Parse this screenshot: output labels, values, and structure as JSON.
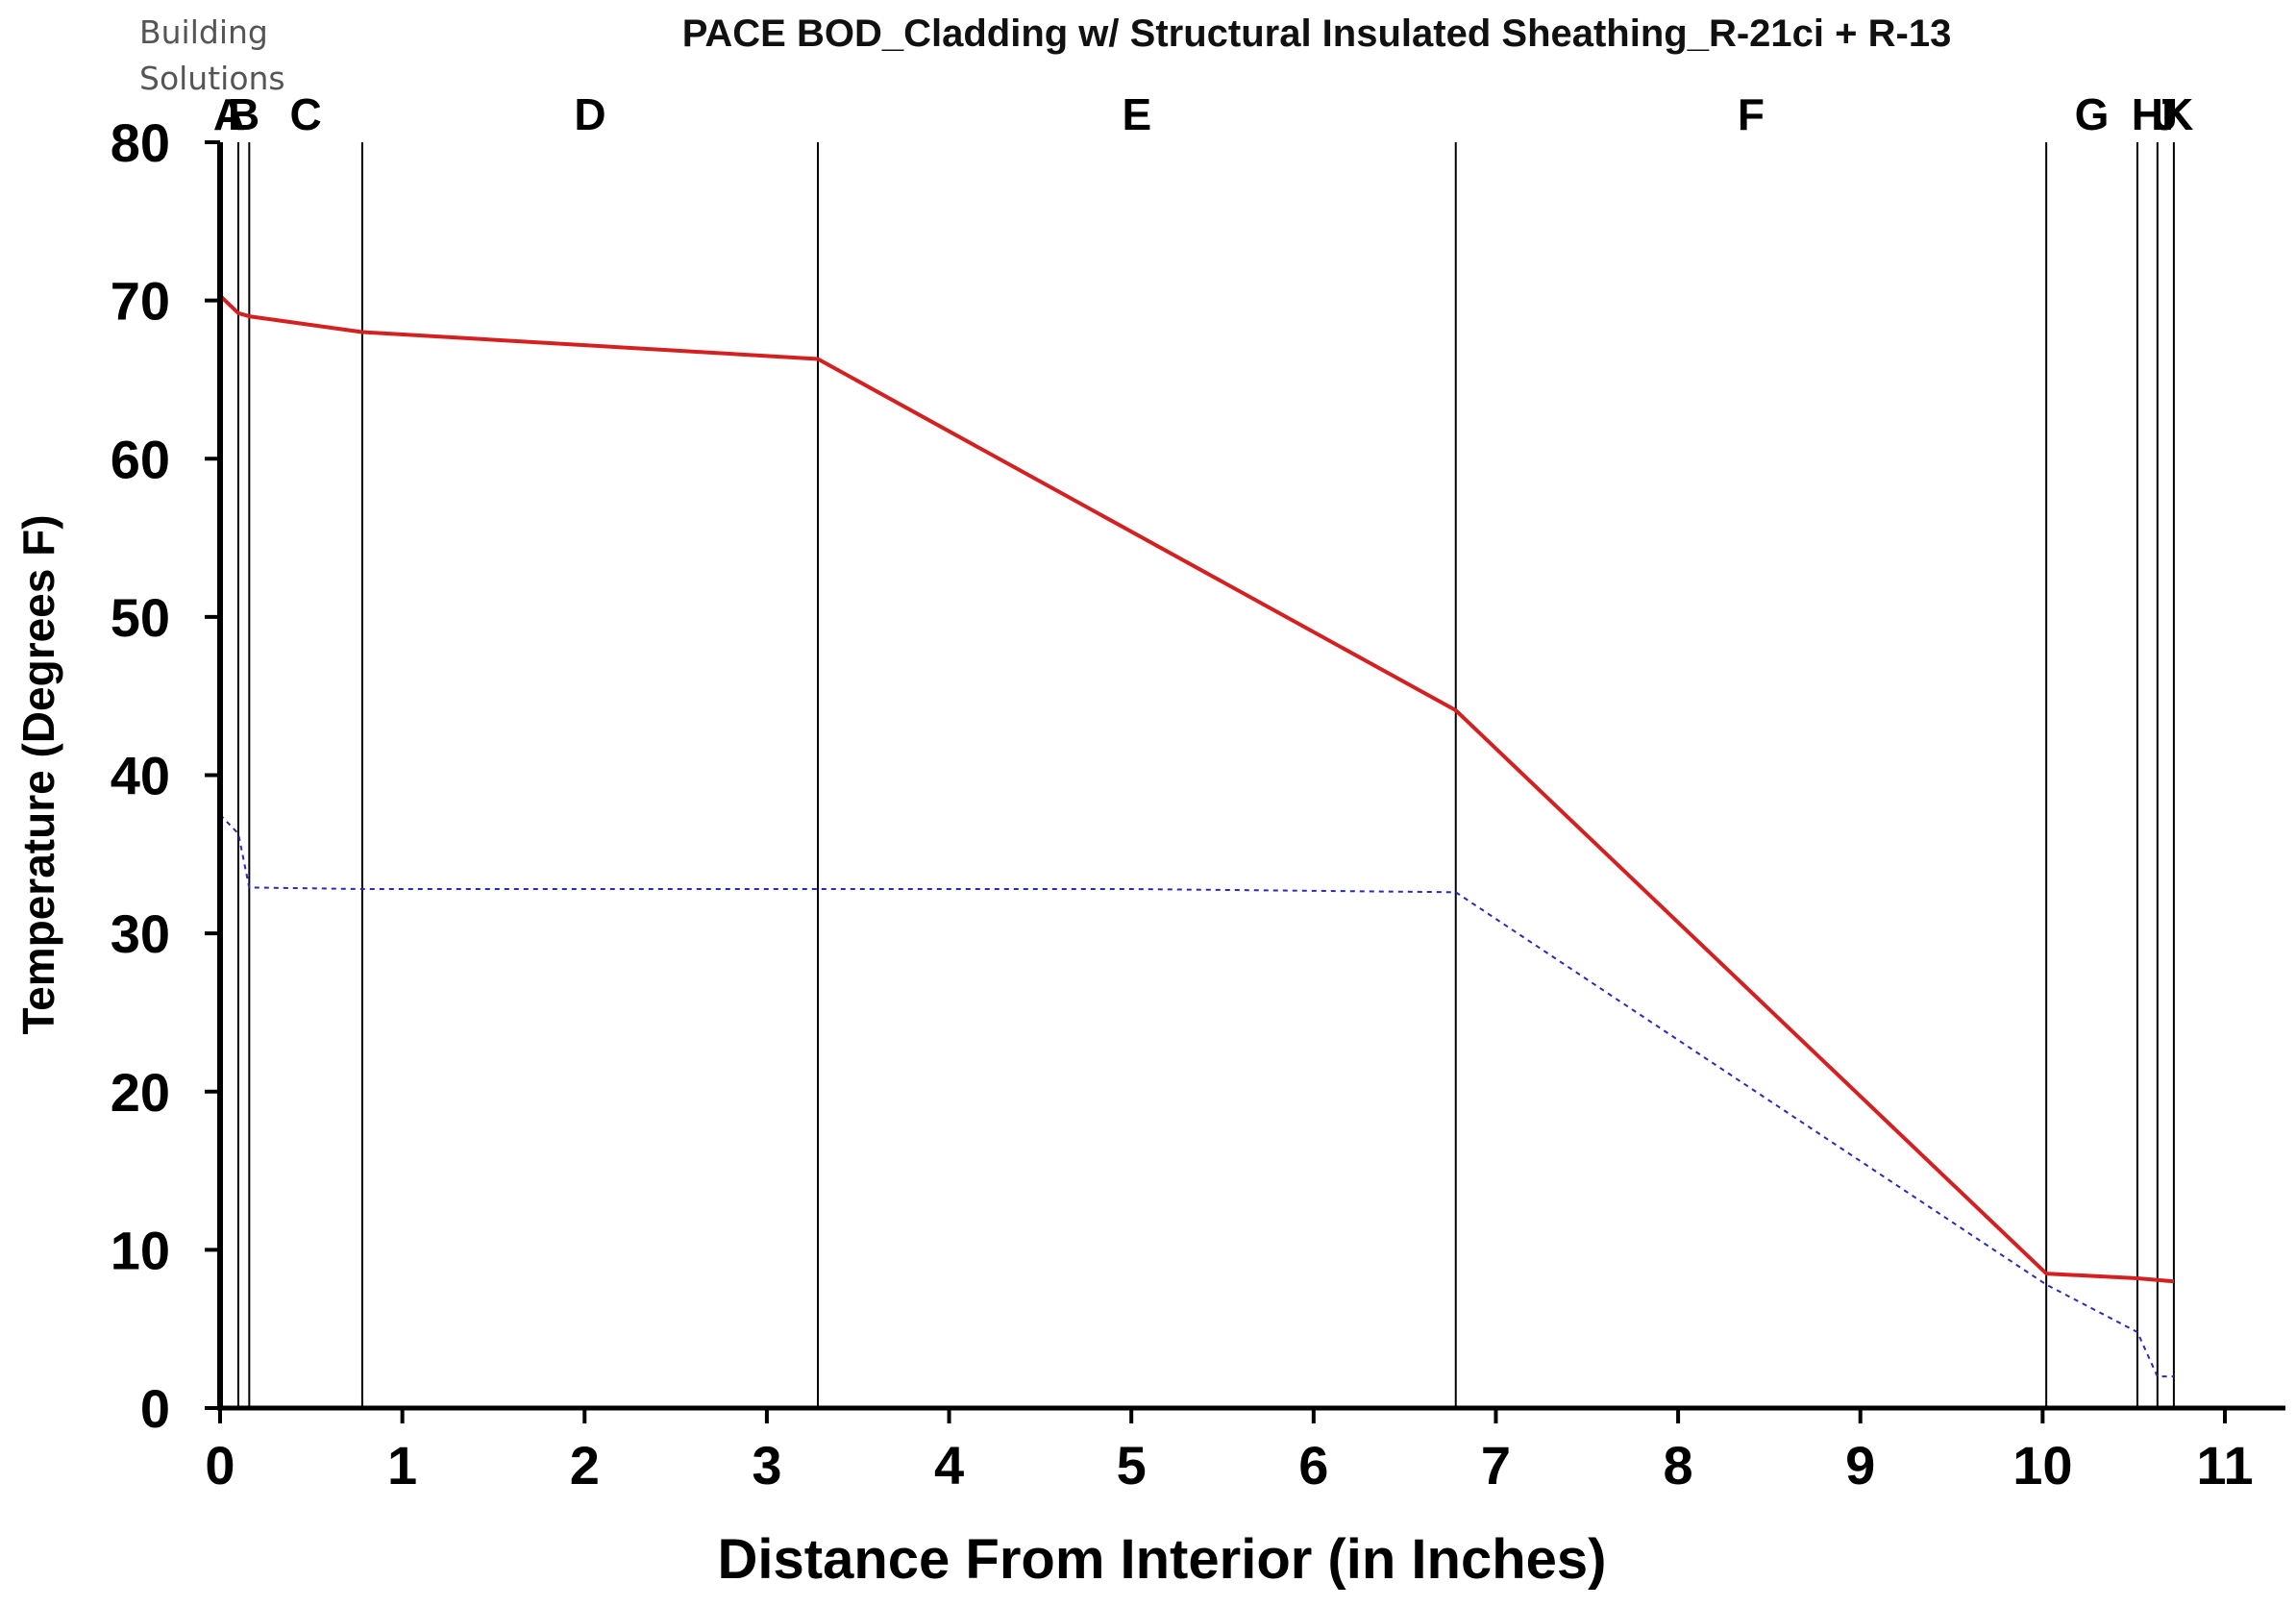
{
  "logo": {
    "line1": "Building",
    "line2": "Solutions"
  },
  "chart_data": {
    "type": "line",
    "title": "PACE BOD_Cladding w/ Structural Insulated Sheathing_R-21ci + R-13",
    "xlabel": "Distance From Interior (in Inches)",
    "ylabel": "Temperature (Degrees F)",
    "xlim": [
      0,
      11
    ],
    "ylim": [
      0,
      80
    ],
    "xticks": [
      0,
      1,
      2,
      3,
      4,
      5,
      6,
      7,
      8,
      9,
      10,
      11
    ],
    "yticks": [
      0,
      10,
      20,
      30,
      40,
      50,
      60,
      70,
      80
    ],
    "layer_boundaries": [
      0.1,
      0.16,
      0.78,
      3.28,
      6.78,
      10.02,
      10.52,
      10.63,
      10.72
    ],
    "layer_labels": [
      "A",
      "B",
      "C",
      "D",
      "E",
      "F",
      "G",
      "H",
      "J",
      "K"
    ],
    "grid": false,
    "series": [
      {
        "color": "#d42020",
        "style": "solid",
        "x": [
          0,
          0.1,
          0.16,
          0.78,
          3.28,
          6.78,
          10.02,
          10.52,
          10.63,
          10.72
        ],
        "y": [
          70.3,
          69.2,
          69.0,
          68.0,
          66.3,
          44.1,
          8.5,
          8.2,
          8.1,
          8.0
        ]
      },
      {
        "color": "#2a2ab8",
        "style": "dotted",
        "x": [
          0,
          0.1,
          0.16,
          0.78,
          3.28,
          5.0,
          6.78,
          10.02,
          10.52,
          10.63,
          10.72
        ],
        "y": [
          37.5,
          36.3,
          32.9,
          32.8,
          32.8,
          32.8,
          32.6,
          7.8,
          4.8,
          2.0,
          2.0
        ]
      }
    ]
  }
}
